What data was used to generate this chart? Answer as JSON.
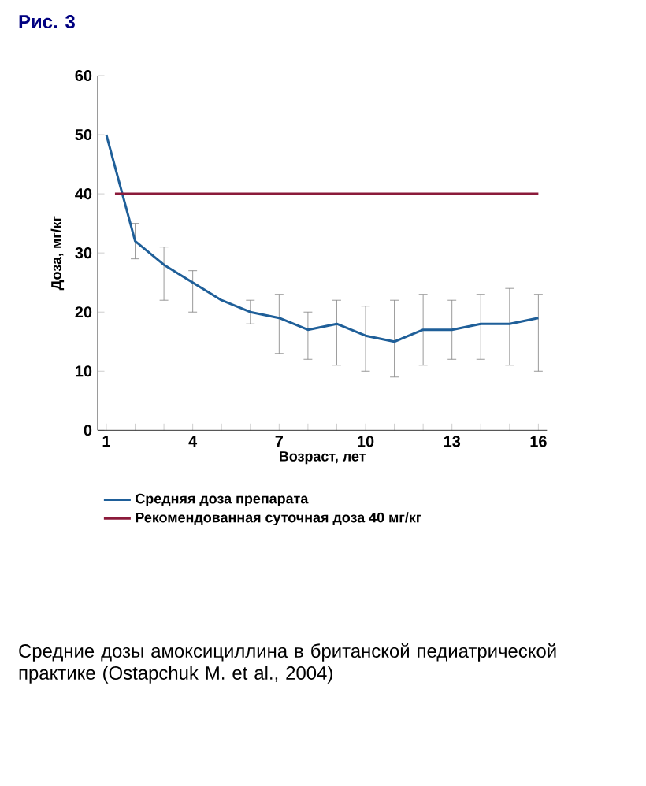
{
  "chart_data": {
    "type": "line",
    "title": "Рис. 3",
    "xlabel": "Возраст, лет",
    "ylabel": "Доза, мг/кг",
    "xlim": [
      0.7,
      16.3
    ],
    "ylim": [
      0,
      60
    ],
    "xticks": [
      1,
      {
        "value": 2,
        "label": null
      },
      {
        "value": 3,
        "label": null
      },
      4,
      {
        "value": 5,
        "label": null
      },
      {
        "value": 6,
        "label": null
      },
      7,
      {
        "value": 8,
        "label": null
      },
      {
        "value": 9,
        "label": null
      },
      10,
      {
        "value": 11,
        "label": null
      },
      {
        "value": 12,
        "label": null
      },
      13,
      {
        "value": 14,
        "label": null
      },
      {
        "value": 15,
        "label": null
      },
      16
    ],
    "yticks": [
      0,
      10,
      20,
      30,
      40,
      50,
      60
    ],
    "x": [
      1,
      2,
      3,
      4,
      5,
      6,
      7,
      8,
      9,
      10,
      11,
      12,
      13,
      14,
      15,
      16
    ],
    "series": [
      {
        "name": "Средняя доза препарата",
        "color": "#1f5f99",
        "values": [
          50,
          32,
          28,
          25,
          22,
          20,
          19,
          17,
          18,
          16,
          15,
          17,
          17,
          18,
          18,
          19
        ],
        "errors": [
          null,
          [
            29,
            35
          ],
          [
            22,
            31
          ],
          [
            20,
            27
          ],
          null,
          [
            18,
            22
          ],
          [
            13,
            23
          ],
          [
            12,
            20
          ],
          [
            11,
            22
          ],
          [
            10,
            21
          ],
          [
            9,
            22
          ],
          [
            11,
            23
          ],
          [
            12,
            22
          ],
          [
            12,
            23
          ],
          [
            11,
            24
          ],
          [
            10,
            23
          ]
        ]
      },
      {
        "name": "Рекомендованная суточная доза 40 мг/кг",
        "color": "#8b1a3a",
        "x": [
          1.3,
          16
        ],
        "values": [
          40,
          40
        ]
      }
    ],
    "legend": "bottom",
    "grid": false,
    "annotations": [
      "Средние дозы амоксициллина в британской педиатрической практике (Ostapchuk M. et al., 2004)"
    ]
  }
}
